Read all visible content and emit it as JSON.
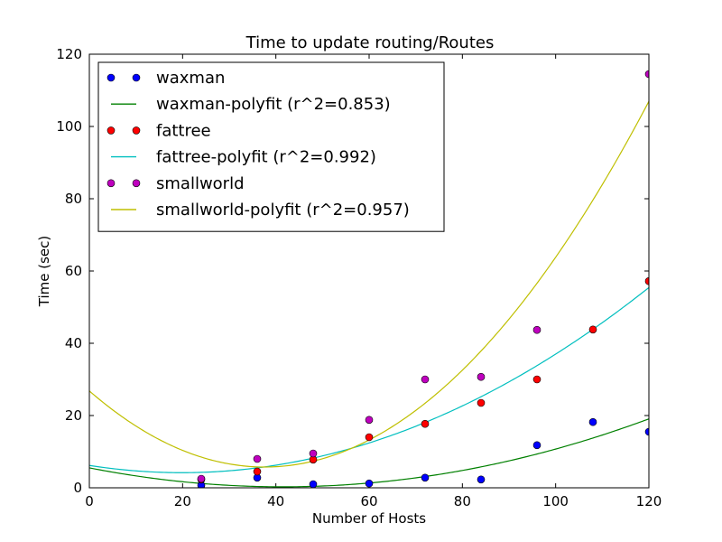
{
  "chart_data": {
    "type": "scatter",
    "title": "Time to update routing/Routes",
    "xlabel": "Number of Hosts",
    "ylabel": "Time (sec)",
    "xlim": [
      0,
      120
    ],
    "ylim": [
      0,
      120
    ],
    "xticks": [
      0,
      20,
      40,
      60,
      80,
      100,
      120
    ],
    "yticks": [
      0,
      20,
      40,
      60,
      80,
      100,
      120
    ],
    "grid": false,
    "legend_position": "top-left",
    "series": [
      {
        "name": "waxman",
        "kind": "points",
        "color": "#0000ff",
        "x": [
          24,
          36,
          48,
          60,
          72,
          84,
          96,
          108,
          120
        ],
        "y": [
          0.7,
          2.8,
          1.0,
          1.2,
          2.8,
          2.3,
          11.8,
          18.2,
          15.5
        ]
      },
      {
        "name": "waxman-polyfit (r^2=0.853)",
        "kind": "line",
        "color": "#008000",
        "coeffs": [
          5.52,
          -0.253,
          0.00305
        ]
      },
      {
        "name": "fattree",
        "kind": "points",
        "color": "#ff0000",
        "x": [
          24,
          36,
          48,
          60,
          72,
          84,
          96,
          108,
          120
        ],
        "y": [
          2.3,
          4.5,
          7.8,
          14.0,
          17.7,
          23.5,
          30.0,
          43.8,
          57.2
        ]
      },
      {
        "name": "fattree-polyfit (r^2=0.992)",
        "kind": "line",
        "color": "#00bfbf",
        "coeffs": [
          6.2,
          -0.203,
          0.00511
        ]
      },
      {
        "name": "smallworld",
        "kind": "points",
        "color": "#bf00bf",
        "x": [
          24,
          36,
          48,
          60,
          72,
          84,
          96,
          120
        ],
        "y": [
          2.5,
          8.0,
          9.5,
          18.8,
          30.0,
          30.7,
          43.7,
          114.5
        ]
      },
      {
        "name": "smallworld-polyfit (r^2=0.957)",
        "kind": "line",
        "color": "#bfbf00",
        "coeffs": [
          26.8,
          -1.12,
          0.0149
        ]
      }
    ]
  }
}
